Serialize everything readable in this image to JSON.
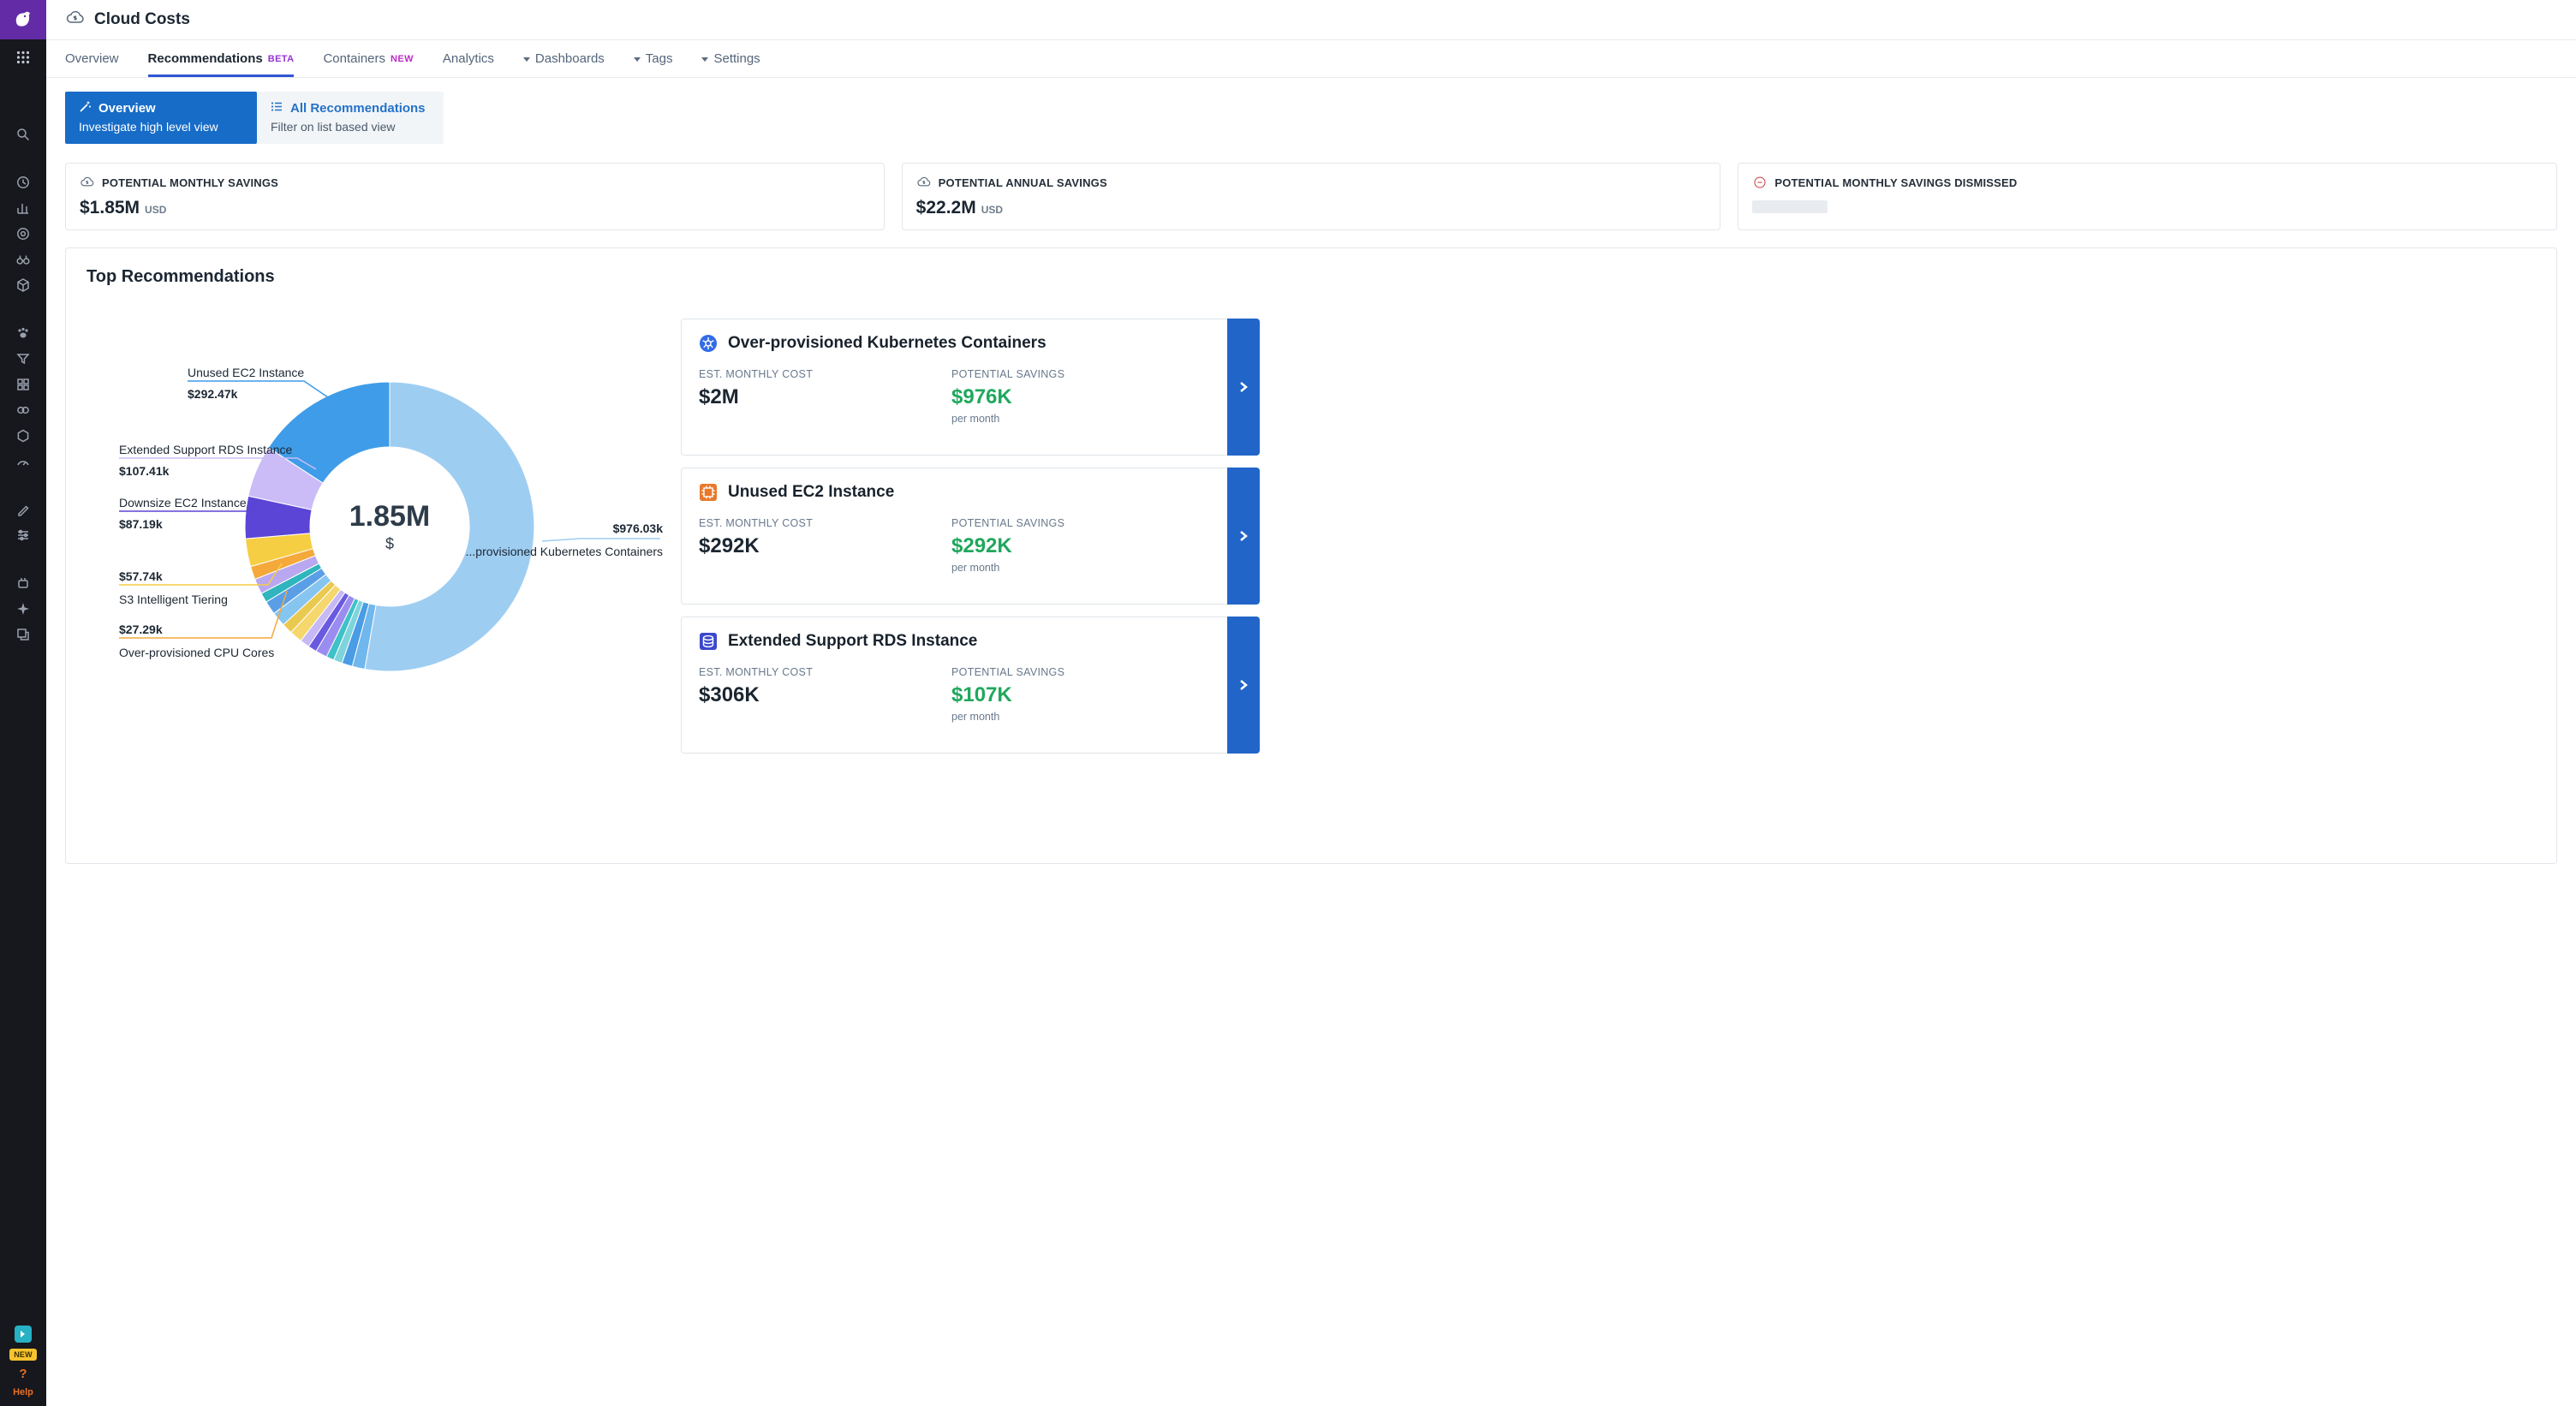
{
  "header": {
    "title": "Cloud Costs"
  },
  "nav": {
    "items": [
      {
        "label": "Overview"
      },
      {
        "label": "Recommendations",
        "badge": "BETA"
      },
      {
        "label": "Containers",
        "badge": "NEW"
      },
      {
        "label": "Analytics"
      },
      {
        "label": "Dashboards"
      },
      {
        "label": "Tags"
      },
      {
        "label": "Settings"
      }
    ]
  },
  "view_toggle": {
    "overview": {
      "title": "Overview",
      "subtitle": "Investigate high level view"
    },
    "all": {
      "title": "All Recommendations",
      "subtitle": "Filter on list based view"
    }
  },
  "stats": [
    {
      "label": "POTENTIAL MONTHLY SAVINGS",
      "value": "$1.85M",
      "unit": "USD"
    },
    {
      "label": "POTENTIAL ANNUAL SAVINGS",
      "value": "$22.2M",
      "unit": "USD"
    },
    {
      "label": "POTENTIAL MONTHLY SAVINGS DISMISSED",
      "value": "",
      "loading": true
    }
  ],
  "section": {
    "title": "Top Recommendations"
  },
  "chart_data": {
    "type": "pie",
    "variant": "donut",
    "title": "Top Recommendations",
    "center": {
      "value": "1.85M",
      "unit": "$"
    },
    "value_unit": "USD thousands per month",
    "slices": [
      {
        "label": "Over-provisioned Kubernetes Containers",
        "value": 976.03,
        "color": "#9ecdf2"
      },
      {
        "label": "",
        "value": 26,
        "color": "#6fb7ec"
      },
      {
        "label": "",
        "value": 22,
        "color": "#4a9ce4"
      },
      {
        "label": "",
        "value": 18,
        "color": "#7fd4dc"
      },
      {
        "label": "",
        "value": 16,
        "color": "#3fc1c9"
      },
      {
        "label": "",
        "value": 24,
        "color": "#9b8cf0"
      },
      {
        "label": "",
        "value": 18,
        "color": "#6a5ae0"
      },
      {
        "label": "",
        "value": 20,
        "color": "#c7b8f6"
      },
      {
        "label": "",
        "value": 26,
        "color": "#f5d76e"
      },
      {
        "label": "",
        "value": 22,
        "color": "#e9c94f"
      },
      {
        "label": "",
        "value": 30,
        "color": "#86c5f0"
      },
      {
        "label": "",
        "value": 28,
        "color": "#5a9fe6"
      },
      {
        "label": "",
        "value": 20,
        "color": "#2fb5be"
      },
      {
        "label": "",
        "value": 31.87,
        "color": "#b9a7f0"
      },
      {
        "label": "Over-provisioned CPU Cores",
        "value": 27.29,
        "color": "#f5a93b"
      },
      {
        "label": "S3 Intelligent Tiering",
        "value": 57.74,
        "color": "#f6ce44"
      },
      {
        "label": "Downsize EC2 Instance",
        "value": 87.19,
        "color": "#5b45d6"
      },
      {
        "label": "Extended Support RDS Instance",
        "value": 107.41,
        "color": "#cbbcf7"
      },
      {
        "label": "Unused EC2 Instance",
        "value": 292.47,
        "color": "#3f9ce8"
      }
    ],
    "callouts": [
      {
        "label": "Unused EC2 Instance",
        "value": "$292.47k"
      },
      {
        "label": "Extended Support RDS Instance",
        "value": "$107.41k"
      },
      {
        "label": "Downsize EC2 Instance",
        "value": "$87.19k"
      },
      {
        "label": "S3 Intelligent Tiering",
        "value": "$57.74k"
      },
      {
        "label": "Over-provisioned CPU Cores",
        "value": "$27.29k"
      },
      {
        "label": "...provisioned Kubernetes Containers",
        "value": "$976.03k"
      }
    ]
  },
  "recommendations": [
    {
      "title": "Over-provisioned Kubernetes Containers",
      "est_label": "EST. MONTHLY COST",
      "est_value": "$2M",
      "savings_label": "POTENTIAL SAVINGS",
      "savings_value": "$976K",
      "period": "per month"
    },
    {
      "title": "Unused EC2 Instance",
      "est_label": "EST. MONTHLY COST",
      "est_value": "$292K",
      "savings_label": "POTENTIAL SAVINGS",
      "savings_value": "$292K",
      "period": "per month"
    },
    {
      "title": "Extended Support RDS Instance",
      "est_label": "EST. MONTHLY COST",
      "est_value": "$306K",
      "savings_label": "POTENTIAL SAVINGS",
      "savings_value": "$107K",
      "period": "per month"
    }
  ],
  "sidebar": {
    "new_badge": "NEW",
    "question_label": "?",
    "help_label": "Help",
    "icons": [
      "apps-grid",
      "search",
      "history",
      "metrics",
      "services",
      "watchdog",
      "infrastructure",
      "processes",
      "logs",
      "dashboards-grid",
      "integrations",
      "packages",
      "monitors",
      "notebooks",
      "settings-sliders",
      "workflows",
      "sparkle",
      "copy",
      "ci-pipeline"
    ]
  },
  "colors": {
    "accent_blue": "#176cc7",
    "link_blue": "#2472c8",
    "underline_blue": "#3155d4",
    "savings_green": "#1fa85c",
    "beta_purple": "#9532d8",
    "new_pink": "#bd2cc7",
    "danger_red": "#cf4a52",
    "brand_purple": "#632ca6"
  }
}
